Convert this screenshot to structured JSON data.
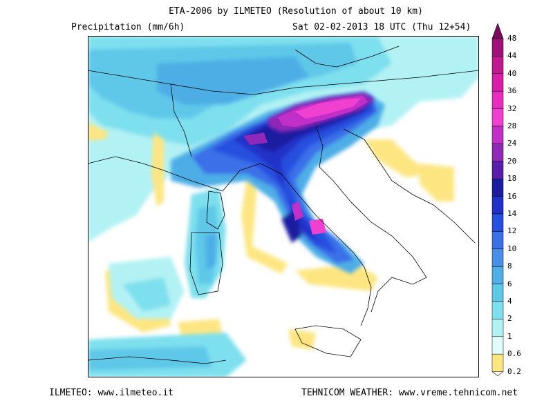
{
  "header": {
    "title": "ETA-2006 by ILMETEO (Resolution of about 10 km)",
    "parameter": "Precipitation (mm/6h)",
    "valid_time": "Sat 02-02-2013 18 UTC (Thu 12+54)"
  },
  "footer": {
    "left_credit": "ILMETEO: www.ilmeteo.it",
    "right_credit": "TEHNICOM WEATHER: www.vreme.tehnicom.net"
  },
  "colorbar": {
    "levels": [
      {
        "label": "48",
        "color": "#7a0a5a"
      },
      {
        "label": "44",
        "color": "#a0107a"
      },
      {
        "label": "40",
        "color": "#c01890"
      },
      {
        "label": "36",
        "color": "#d81ea8"
      },
      {
        "label": "32",
        "color": "#e82cc0"
      },
      {
        "label": "28",
        "color": "#f040d0"
      },
      {
        "label": "24",
        "color": "#c030c8"
      },
      {
        "label": "20",
        "color": "#9028b8"
      },
      {
        "label": "18",
        "color": "#5a1eaa"
      },
      {
        "label": "16",
        "color": "#1c1ca0"
      },
      {
        "label": "14",
        "color": "#2030c8"
      },
      {
        "label": "12",
        "color": "#2850e0"
      },
      {
        "label": "10",
        "color": "#3a70e8"
      },
      {
        "label": "8",
        "color": "#4a8ee8"
      },
      {
        "label": "6",
        "color": "#4eaee6"
      },
      {
        "label": "4",
        "color": "#5ec8e8"
      },
      {
        "label": "2",
        "color": "#7ee0ee"
      },
      {
        "label": "1",
        "color": "#b2f2f4"
      },
      {
        "label": "0.6",
        "color": "#e0fbfc"
      },
      {
        "label": "0.2",
        "color": "#fde682"
      }
    ]
  }
}
